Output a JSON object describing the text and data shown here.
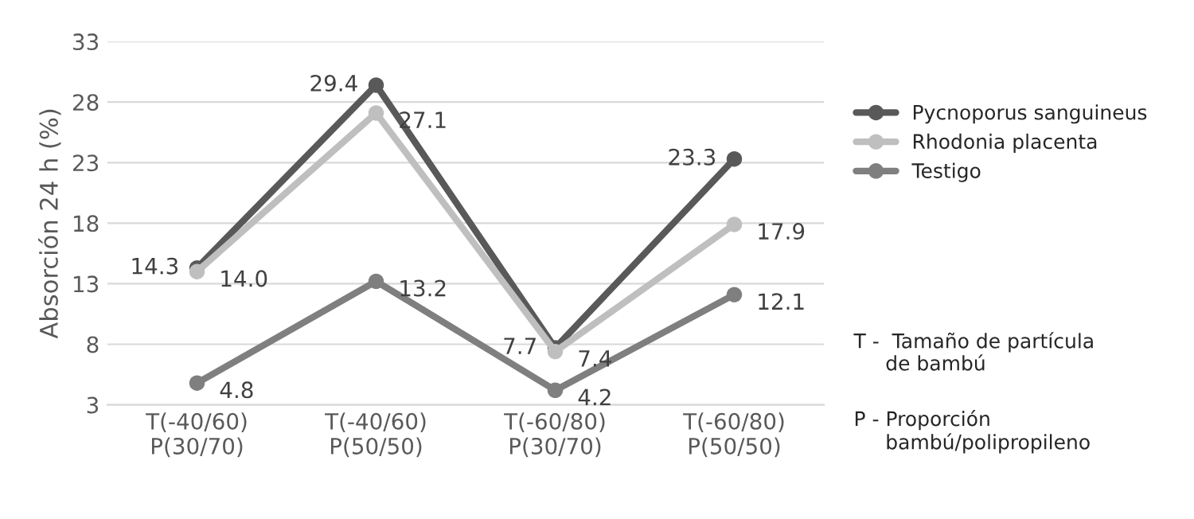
{
  "chart_data": {
    "type": "line",
    "ylabel": "Absorción 24 h (%)",
    "categories": [
      "T(-40/60)\nP(30/70)",
      "T(-40/60)\nP(50/50)",
      "T(-60/80)\nP(30/70)",
      "T(-60/80)\nP(50/50)"
    ],
    "series": [
      {
        "name": "Pycnoporus sanguineus",
        "color": "#595959",
        "values": [
          14.3,
          29.4,
          7.7,
          23.3
        ],
        "value_labels": [
          "14.3",
          "29.4",
          "7.7",
          "23.3"
        ]
      },
      {
        "name": "Rhodonia placenta",
        "color": "#bfbfbf",
        "values": [
          14.0,
          27.1,
          7.4,
          17.9
        ],
        "value_labels": [
          "14.0",
          "27.1",
          "7.4",
          "17.9"
        ]
      },
      {
        "name": "Testigo",
        "color": "#7f7f7f",
        "values": [
          4.8,
          13.2,
          4.2,
          12.1
        ],
        "value_labels": [
          "4.8",
          "13.2",
          "4.2",
          "12.1"
        ]
      }
    ],
    "ylim": [
      3,
      33
    ],
    "yticks": [
      3,
      8,
      13,
      18,
      23,
      28,
      33
    ],
    "grid": "y",
    "legend": "right",
    "marker": "circle",
    "line_style": "solid",
    "annotations": [
      "T -  Tamaño de partícula\n     de bambú",
      "P - Proporción\n     bambú/polipropileno"
    ]
  }
}
